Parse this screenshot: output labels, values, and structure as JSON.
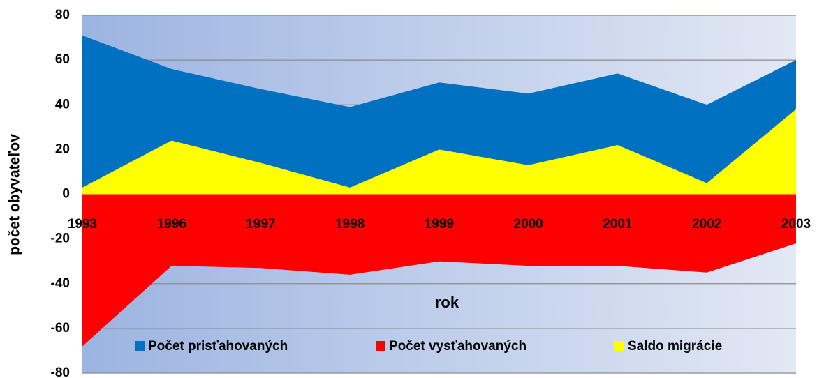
{
  "chart_data": {
    "type": "area",
    "x_label": "rok",
    "y_label": "počet obyvateľov",
    "categories": [
      "1993",
      "1996",
      "1997",
      "1998",
      "1999",
      "2000",
      "2001",
      "2002",
      "2003"
    ],
    "series": [
      {
        "name": "Počet prisťahovaných",
        "color": "#0070c0",
        "values": [
          71,
          56,
          47,
          39,
          50,
          45,
          54,
          40,
          60
        ]
      },
      {
        "name": "Počet vysťahovaných",
        "color": "#ff0000",
        "values": [
          -68,
          -32,
          -33,
          -36,
          -30,
          -32,
          -32,
          -35,
          -22
        ]
      },
      {
        "name": "Saldo migrácie",
        "color": "#ffff00",
        "values": [
          3,
          24,
          14,
          3,
          20,
          13,
          22,
          5,
          38
        ]
      }
    ],
    "ylim": [
      -80,
      80
    ],
    "yticks": [
      -80,
      -60,
      -40,
      -20,
      0,
      20,
      40,
      60,
      80
    ],
    "grid": true,
    "legend": "bottom"
  }
}
